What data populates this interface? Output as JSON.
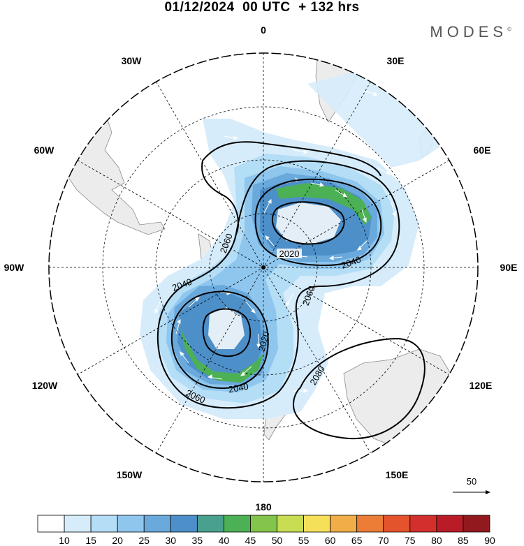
{
  "header": {
    "title": "01/12/2024  00 UTC  + 132 hrs",
    "brand": "MODES",
    "brand_mark": "©"
  },
  "map": {
    "projection": "south polar stereographic",
    "longitude_labels": [
      "0",
      "30E",
      "60E",
      "90E",
      "120E",
      "150E",
      "180",
      "150W",
      "120W",
      "90W",
      "60W",
      "30W"
    ],
    "contour_labels": [
      "2020",
      "2040",
      "2060",
      "2080"
    ],
    "colors": {
      "land": "#ececec",
      "coast": "#8a8a8a",
      "grid": "#000000",
      "contour": "#000000",
      "vector": "#ffffff"
    }
  },
  "reference_vector": {
    "label": "50"
  },
  "colorbar": {
    "ticks": [
      "10",
      "15",
      "20",
      "25",
      "30",
      "35",
      "40",
      "45",
      "50",
      "55",
      "60",
      "65",
      "70",
      "75",
      "80",
      "85",
      "90"
    ],
    "colors": [
      "#ffffff",
      "#d6ecfb",
      "#b4ddf6",
      "#8fc6ee",
      "#6aa9dc",
      "#4d8fc8",
      "#4aa08e",
      "#4cb055",
      "#83c44a",
      "#c9dd52",
      "#f6e05a",
      "#f1ad48",
      "#ec7d36",
      "#e5532c",
      "#d32f2d",
      "#b91c26",
      "#921a1f"
    ]
  }
}
